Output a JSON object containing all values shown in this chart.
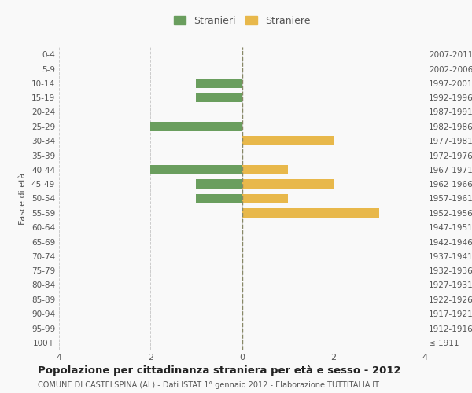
{
  "age_groups": [
    "100+",
    "95-99",
    "90-94",
    "85-89",
    "80-84",
    "75-79",
    "70-74",
    "65-69",
    "60-64",
    "55-59",
    "50-54",
    "45-49",
    "40-44",
    "35-39",
    "30-34",
    "25-29",
    "20-24",
    "15-19",
    "10-14",
    "5-9",
    "0-4"
  ],
  "birth_years": [
    "≤ 1911",
    "1912-1916",
    "1917-1921",
    "1922-1926",
    "1927-1931",
    "1932-1936",
    "1937-1941",
    "1942-1946",
    "1947-1951",
    "1952-1956",
    "1957-1961",
    "1962-1966",
    "1967-1971",
    "1972-1976",
    "1977-1981",
    "1982-1986",
    "1987-1991",
    "1992-1996",
    "1997-2001",
    "2002-2006",
    "2007-2011"
  ],
  "males": [
    0,
    0,
    0,
    0,
    0,
    0,
    0,
    0,
    0,
    0,
    1,
    1,
    2,
    0,
    0,
    2,
    0,
    1,
    1,
    0,
    0
  ],
  "females": [
    0,
    0,
    0,
    0,
    0,
    0,
    0,
    0,
    0,
    3,
    1,
    2,
    1,
    0,
    2,
    0,
    0,
    0,
    0,
    0,
    0
  ],
  "male_color": "#6a9e5e",
  "female_color": "#e8b84b",
  "male_label": "Stranieri",
  "female_label": "Straniere",
  "xlim": 4,
  "title": "Popolazione per cittadinanza straniera per età e sesso - 2012",
  "subtitle": "COMUNE DI CASTELSPINA (AL) - Dati ISTAT 1° gennaio 2012 - Elaborazione TUTTITALIA.IT",
  "ylabel_left": "Fasce di età",
  "bg_color": "#f9f9f9",
  "grid_color": "#cccccc",
  "bar_height": 0.65
}
